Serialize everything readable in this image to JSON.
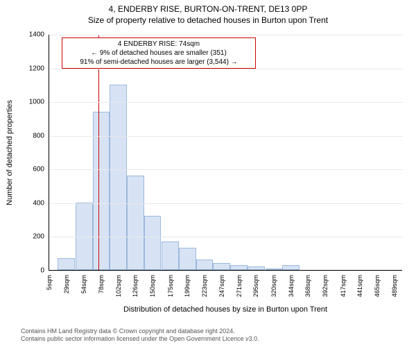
{
  "title1": "4, ENDERBY RISE, BURTON-ON-TRENT, DE13 0PP",
  "title2": "Size of property relative to detached houses in Burton upon Trent",
  "ylabel": "Number of detached properties",
  "xlabel": "Distribution of detached houses by size in Burton upon Trent",
  "footer1": "Contains HM Land Registry data © Crown copyright and database right 2024.",
  "footer2": "Contains public sector information licensed under the Open Government Licence v3.0.",
  "chart": {
    "type": "histogram",
    "xlim": [
      5,
      501
    ],
    "ylim": [
      0,
      1400
    ],
    "ytick_step": 200,
    "yticks": [
      0,
      200,
      400,
      600,
      800,
      1000,
      1200,
      1400
    ],
    "xticks": [
      5,
      29,
      54,
      78,
      102,
      126,
      150,
      175,
      199,
      223,
      247,
      271,
      295,
      320,
      344,
      368,
      392,
      417,
      441,
      465,
      489
    ],
    "xtick_suffix": "sqm",
    "bar_fill": "#d7e3f4",
    "bar_border": "#9bb8dd",
    "grid_color": "#e8e8e8",
    "bars": [
      {
        "x": 29,
        "v": 70
      },
      {
        "x": 54,
        "v": 400
      },
      {
        "x": 78,
        "v": 940
      },
      {
        "x": 102,
        "v": 1100
      },
      {
        "x": 126,
        "v": 560
      },
      {
        "x": 150,
        "v": 320
      },
      {
        "x": 175,
        "v": 170
      },
      {
        "x": 199,
        "v": 130
      },
      {
        "x": 223,
        "v": 60
      },
      {
        "x": 247,
        "v": 40
      },
      {
        "x": 271,
        "v": 30
      },
      {
        "x": 295,
        "v": 20
      },
      {
        "x": 320,
        "v": 10
      },
      {
        "x": 344,
        "v": 30
      },
      {
        "x": 368,
        "v": 0
      },
      {
        "x": 392,
        "v": 0
      }
    ],
    "bar_width_units": 24,
    "reference_line_x": 74,
    "reference_line_color": "#cc0000",
    "annotation": {
      "line1": "4 ENDERBY RISE: 74sqm",
      "line2": "← 9% of detached houses are smaller (351)",
      "line3": "91% of semi-detached houses are larger (3,544) →",
      "border_color": "#cc0000"
    }
  },
  "colors": {
    "text": "#000000",
    "background": "#ffffff"
  }
}
